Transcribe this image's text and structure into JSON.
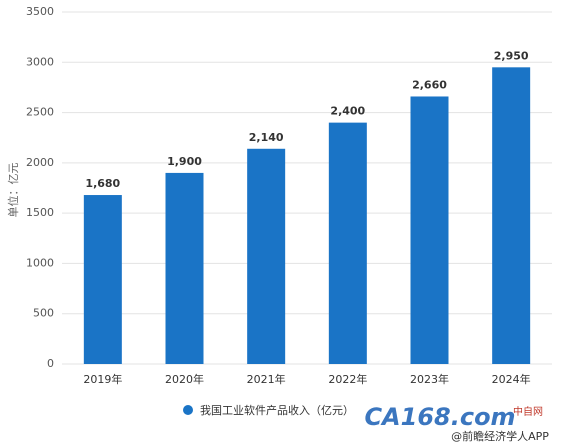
{
  "chart_data": {
    "type": "bar",
    "y_label": "单位：亿元",
    "categories": [
      "2019年",
      "2020年",
      "2021年",
      "2022年",
      "2023年",
      "2024年"
    ],
    "series": [
      {
        "name": "我国工业软件产品收入（亿元）",
        "color": "#1a74c6",
        "values": [
          1680,
          1900,
          2140,
          2400,
          2660,
          2950
        ],
        "value_labels": [
          "1,680",
          "1,900",
          "2,140",
          "2,400",
          "2,660",
          "2,950"
        ]
      }
    ],
    "ylim": [
      0,
      3500
    ],
    "yticks": [
      0,
      500,
      1000,
      1500,
      2000,
      2500,
      3000,
      3500
    ],
    "grid": true,
    "legend": "bottom",
    "annotations": [
      "CA168.com",
      "中自网",
      "@前瞻经济学人APP"
    ]
  }
}
